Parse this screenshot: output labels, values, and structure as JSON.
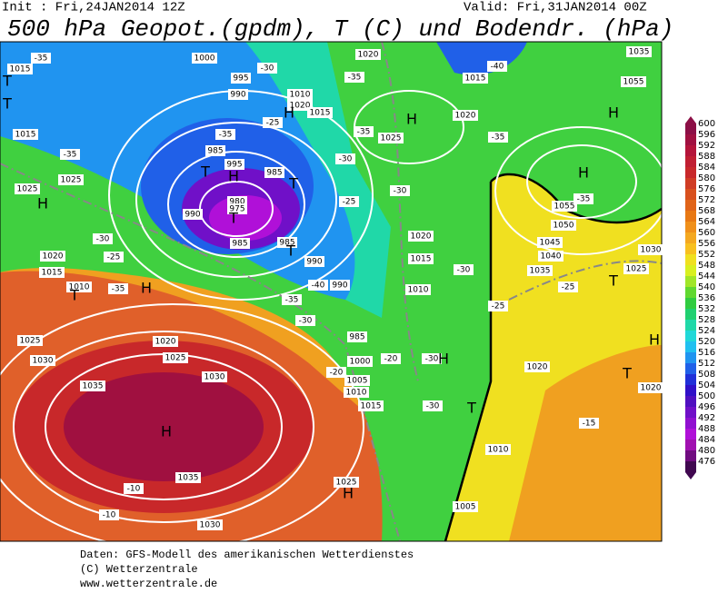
{
  "header": {
    "init": "Init : Fri,24JAN2014 12Z",
    "valid": "Valid: Fri,31JAN2014 00Z",
    "title": "500 hPa Geopot.(gpdm), T (C) und Bodendr. (hPa)"
  },
  "colorbar": {
    "labels": [
      "600",
      "596",
      "592",
      "588",
      "584",
      "580",
      "576",
      "572",
      "568",
      "564",
      "560",
      "556",
      "552",
      "548",
      "544",
      "540",
      "536",
      "532",
      "528",
      "524",
      "520",
      "516",
      "512",
      "508",
      "504",
      "500",
      "496",
      "492",
      "488",
      "484",
      "480",
      "476"
    ],
    "colors": [
      "#8c0f46",
      "#a01040",
      "#b4143a",
      "#c01e32",
      "#c8282a",
      "#d03c24",
      "#d8501e",
      "#e06419",
      "#e87814",
      "#f0901a",
      "#f4a820",
      "#f8c020",
      "#f0e020",
      "#d8f020",
      "#a0e628",
      "#60d830",
      "#30cc40",
      "#20d070",
      "#20d8a8",
      "#20d8d8",
      "#20c0f0",
      "#2094f0",
      "#2060e8",
      "#2030d8",
      "#3010c8",
      "#5010c0",
      "#7010c8",
      "#9010d0",
      "#b010d8",
      "#a010b0",
      "#700c80",
      "#400850"
    ]
  },
  "map_labels": {
    "isobars": [
      "1015",
      "1000",
      "995",
      "990",
      "1010",
      "1020",
      "1015",
      "1020",
      "1015",
      "1020",
      "1025",
      "1055",
      "1015",
      "1025",
      "1025",
      "985",
      "995",
      "985",
      "980",
      "975",
      "990",
      "985",
      "985",
      "990",
      "990",
      "1020",
      "1015",
      "1010",
      "1020",
      "1015",
      "1010",
      "1025",
      "1020",
      "1025",
      "1030",
      "1030",
      "1035",
      "1035",
      "1030",
      "1025",
      "985",
      "1000",
      "1005",
      "1010",
      "1015",
      "1010",
      "1005",
      "1020",
      "1025",
      "1030",
      "1035",
      "1040",
      "1045",
      "1050",
      "1055",
      "1020",
      "1035"
    ],
    "temperatures": [
      "-35",
      "-35",
      "-30",
      "-25",
      "-35",
      "-40",
      "-35",
      "-30",
      "-30",
      "-25",
      "-30",
      "-35",
      "-35",
      "-30",
      "-35",
      "-25",
      "-35",
      "-40",
      "-35",
      "-30",
      "-25",
      "-25",
      "-20",
      "-30",
      "-30",
      "-15",
      "-10",
      "-10",
      "-20"
    ],
    "centers": [
      "H",
      "H",
      "H",
      "H",
      "H",
      "H",
      "T",
      "T",
      "T",
      "T",
      "T",
      "H",
      "H",
      "H",
      "H",
      "T",
      "T",
      "T",
      "H",
      "T",
      "T"
    ]
  },
  "footer": {
    "lines": [
      "Daten: GFS-Modell des amerikanischen Wetterdienstes",
      "(C) Wetterzentrale",
      "www.wetterzentrale.de"
    ]
  }
}
